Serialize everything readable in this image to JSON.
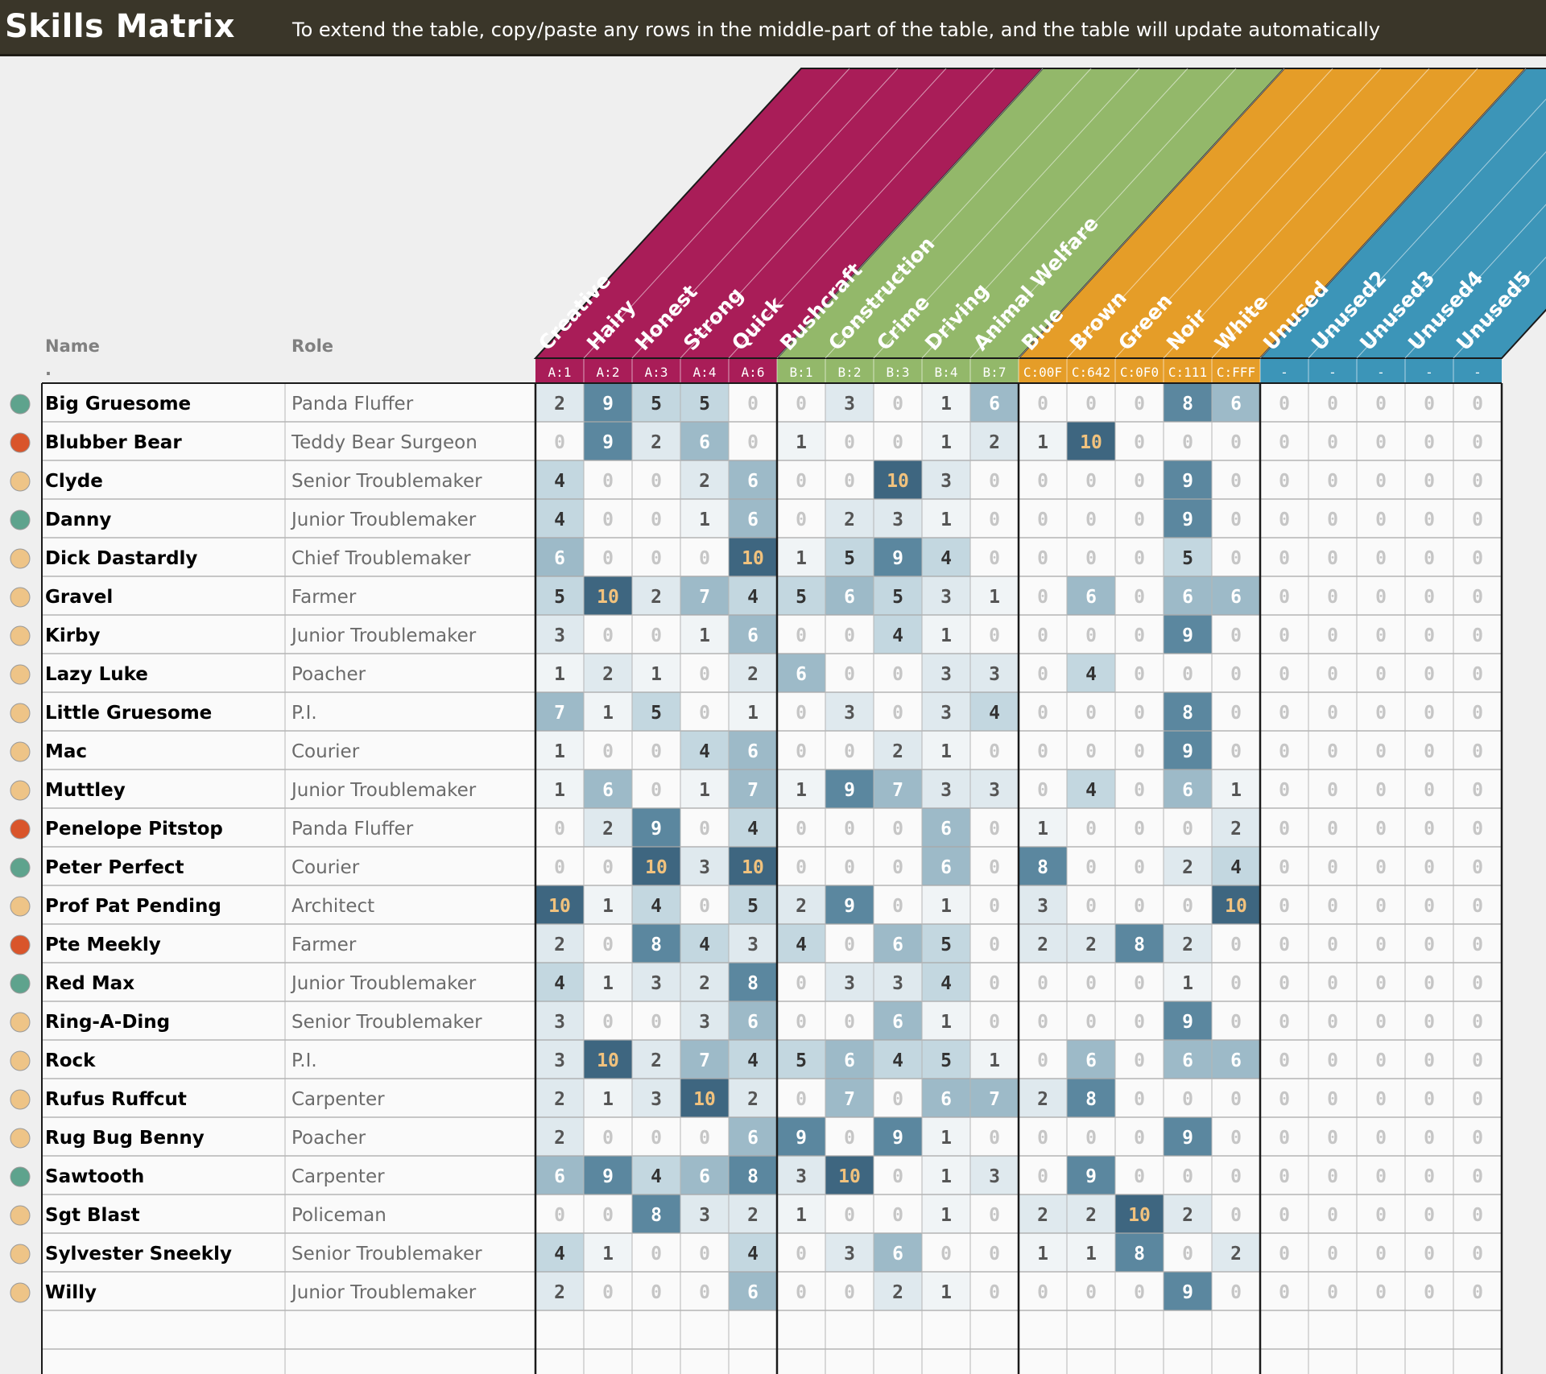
{
  "header": {
    "title": "Skills Matrix",
    "subtitle": "To extend the table, copy/paste any rows in the middle-part of the table, and the table will update automatically"
  },
  "columns": {
    "name": "Name",
    "role": "Role",
    "name_marker": "."
  },
  "categories": [
    {
      "group": "A",
      "label": "Creative",
      "code": "A:1"
    },
    {
      "group": "A",
      "label": "Hairy",
      "code": "A:2"
    },
    {
      "group": "A",
      "label": "Honest",
      "code": "A:3"
    },
    {
      "group": "A",
      "label": "Strong",
      "code": "A:4"
    },
    {
      "group": "A",
      "label": "Quick",
      "code": "A:6"
    },
    {
      "group": "B",
      "label": "Bushcraft",
      "code": "B:1"
    },
    {
      "group": "B",
      "label": "Construction",
      "code": "B:2"
    },
    {
      "group": "B",
      "label": "Crime",
      "code": "B:3"
    },
    {
      "group": "B",
      "label": "Driving",
      "code": "B:4"
    },
    {
      "group": "B",
      "label": "Animal Welfare",
      "code": "B:7"
    },
    {
      "group": "C",
      "label": "Blue",
      "code": "C:00F"
    },
    {
      "group": "C",
      "label": "Brown",
      "code": "C:642"
    },
    {
      "group": "C",
      "label": "Green",
      "code": "C:0F0"
    },
    {
      "group": "C",
      "label": "Noir",
      "code": "C:111"
    },
    {
      "group": "C",
      "label": "White",
      "code": "C:FFF"
    },
    {
      "group": "D",
      "label": "Unused",
      "code": "-"
    },
    {
      "group": "D",
      "label": "Unused2",
      "code": "-"
    },
    {
      "group": "D",
      "label": "Unused3",
      "code": "-"
    },
    {
      "group": "D",
      "label": "Unused4",
      "code": "-"
    },
    {
      "group": "D",
      "label": "Unused5",
      "code": "-"
    }
  ],
  "group_colors": {
    "A": "#a91d58",
    "B": "#93b86a",
    "C": "#e59d28",
    "D": "#3c95b8"
  },
  "status_colors": {
    "green": "#5ea38d",
    "red": "#d9552b",
    "yellow": "#eec487"
  },
  "rows": [
    {
      "status": "green",
      "name": "Big Gruesome",
      "role": "Panda Fluffer",
      "scores": [
        2,
        9,
        5,
        5,
        0,
        0,
        3,
        0,
        1,
        6,
        0,
        0,
        0,
        8,
        6,
        0,
        0,
        0,
        0,
        0
      ]
    },
    {
      "status": "red",
      "name": "Blubber Bear",
      "role": "Teddy Bear Surgeon",
      "scores": [
        0,
        9,
        2,
        6,
        0,
        1,
        0,
        0,
        1,
        2,
        1,
        10,
        0,
        0,
        0,
        0,
        0,
        0,
        0,
        0
      ]
    },
    {
      "status": "yellow",
      "name": "Clyde",
      "role": "Senior Troublemaker",
      "scores": [
        4,
        0,
        0,
        2,
        6,
        0,
        0,
        10,
        3,
        0,
        0,
        0,
        0,
        9,
        0,
        0,
        0,
        0,
        0,
        0
      ]
    },
    {
      "status": "green",
      "name": "Danny",
      "role": "Junior Troublemaker",
      "scores": [
        4,
        0,
        0,
        1,
        6,
        0,
        2,
        3,
        1,
        0,
        0,
        0,
        0,
        9,
        0,
        0,
        0,
        0,
        0,
        0
      ]
    },
    {
      "status": "yellow",
      "name": "Dick Dastardly",
      "role": "Chief Troublemaker",
      "scores": [
        6,
        0,
        0,
        0,
        10,
        1,
        5,
        9,
        4,
        0,
        0,
        0,
        0,
        5,
        0,
        0,
        0,
        0,
        0,
        0
      ]
    },
    {
      "status": "yellow",
      "name": "Gravel",
      "role": "Farmer",
      "scores": [
        5,
        10,
        2,
        7,
        4,
        5,
        6,
        5,
        3,
        1,
        0,
        6,
        0,
        6,
        6,
        0,
        0,
        0,
        0,
        0
      ]
    },
    {
      "status": "yellow",
      "name": "Kirby",
      "role": "Junior Troublemaker",
      "scores": [
        3,
        0,
        0,
        1,
        6,
        0,
        0,
        4,
        1,
        0,
        0,
        0,
        0,
        9,
        0,
        0,
        0,
        0,
        0,
        0
      ]
    },
    {
      "status": "yellow",
      "name": "Lazy Luke",
      "role": "Poacher",
      "scores": [
        1,
        2,
        1,
        0,
        2,
        6,
        0,
        0,
        3,
        3,
        0,
        4,
        0,
        0,
        0,
        0,
        0,
        0,
        0,
        0
      ]
    },
    {
      "status": "yellow",
      "name": "Little Gruesome",
      "role": "P.I.",
      "scores": [
        7,
        1,
        5,
        0,
        1,
        0,
        3,
        0,
        3,
        4,
        0,
        0,
        0,
        8,
        0,
        0,
        0,
        0,
        0,
        0
      ]
    },
    {
      "status": "yellow",
      "name": "Mac",
      "role": "Courier",
      "scores": [
        1,
        0,
        0,
        4,
        6,
        0,
        0,
        2,
        1,
        0,
        0,
        0,
        0,
        9,
        0,
        0,
        0,
        0,
        0,
        0
      ]
    },
    {
      "status": "yellow",
      "name": "Muttley",
      "role": "Junior Troublemaker",
      "scores": [
        1,
        6,
        0,
        1,
        7,
        1,
        9,
        7,
        3,
        3,
        0,
        4,
        0,
        6,
        1,
        0,
        0,
        0,
        0,
        0
      ]
    },
    {
      "status": "red",
      "name": "Penelope Pitstop",
      "role": "Panda Fluffer",
      "scores": [
        0,
        2,
        9,
        0,
        4,
        0,
        0,
        0,
        6,
        0,
        1,
        0,
        0,
        0,
        2,
        0,
        0,
        0,
        0,
        0
      ]
    },
    {
      "status": "green",
      "name": "Peter Perfect",
      "role": "Courier",
      "scores": [
        0,
        0,
        10,
        3,
        10,
        0,
        0,
        0,
        6,
        0,
        8,
        0,
        0,
        2,
        4,
        0,
        0,
        0,
        0,
        0
      ]
    },
    {
      "status": "yellow",
      "name": "Prof Pat Pending",
      "role": "Architect",
      "scores": [
        10,
        1,
        4,
        0,
        5,
        2,
        9,
        0,
        1,
        0,
        3,
        0,
        0,
        0,
        10,
        0,
        0,
        0,
        0,
        0
      ]
    },
    {
      "status": "red",
      "name": "Pte Meekly",
      "role": "Farmer",
      "scores": [
        2,
        0,
        8,
        4,
        3,
        4,
        0,
        6,
        5,
        0,
        2,
        2,
        8,
        2,
        0,
        0,
        0,
        0,
        0,
        0
      ]
    },
    {
      "status": "green",
      "name": "Red Max",
      "role": "Junior Troublemaker",
      "scores": [
        4,
        1,
        3,
        2,
        8,
        0,
        3,
        3,
        4,
        0,
        0,
        0,
        0,
        1,
        0,
        0,
        0,
        0,
        0,
        0
      ]
    },
    {
      "status": "yellow",
      "name": "Ring-A-Ding",
      "role": "Senior Troublemaker",
      "scores": [
        3,
        0,
        0,
        3,
        6,
        0,
        0,
        6,
        1,
        0,
        0,
        0,
        0,
        9,
        0,
        0,
        0,
        0,
        0,
        0
      ]
    },
    {
      "status": "yellow",
      "name": "Rock",
      "role": "P.I.",
      "scores": [
        3,
        10,
        2,
        7,
        4,
        5,
        6,
        4,
        5,
        1,
        0,
        6,
        0,
        6,
        6,
        0,
        0,
        0,
        0,
        0
      ]
    },
    {
      "status": "yellow",
      "name": "Rufus Ruffcut",
      "role": "Carpenter",
      "scores": [
        2,
        1,
        3,
        10,
        2,
        0,
        7,
        0,
        6,
        7,
        2,
        8,
        0,
        0,
        0,
        0,
        0,
        0,
        0,
        0
      ]
    },
    {
      "status": "yellow",
      "name": "Rug Bug Benny",
      "role": "Poacher",
      "scores": [
        2,
        0,
        0,
        0,
        6,
        9,
        0,
        9,
        1,
        0,
        0,
        0,
        0,
        9,
        0,
        0,
        0,
        0,
        0,
        0
      ]
    },
    {
      "status": "green",
      "name": "Sawtooth",
      "role": "Carpenter",
      "scores": [
        6,
        9,
        4,
        6,
        8,
        3,
        10,
        0,
        1,
        3,
        0,
        9,
        0,
        0,
        0,
        0,
        0,
        0,
        0,
        0
      ]
    },
    {
      "status": "yellow",
      "name": "Sgt Blast",
      "role": "Policeman",
      "scores": [
        0,
        0,
        8,
        3,
        2,
        1,
        0,
        0,
        1,
        0,
        2,
        2,
        10,
        2,
        0,
        0,
        0,
        0,
        0,
        0
      ]
    },
    {
      "status": "yellow",
      "name": "Sylvester Sneekly",
      "role": "Senior Troublemaker",
      "scores": [
        4,
        1,
        0,
        0,
        4,
        0,
        3,
        6,
        0,
        0,
        1,
        1,
        8,
        0,
        2,
        0,
        0,
        0,
        0,
        0
      ]
    },
    {
      "status": "yellow",
      "name": "Willy",
      "role": "Junior Troublemaker",
      "scores": [
        2,
        0,
        0,
        0,
        6,
        0,
        0,
        2,
        1,
        0,
        0,
        0,
        0,
        9,
        0,
        0,
        0,
        0,
        0,
        0
      ]
    }
  ]
}
